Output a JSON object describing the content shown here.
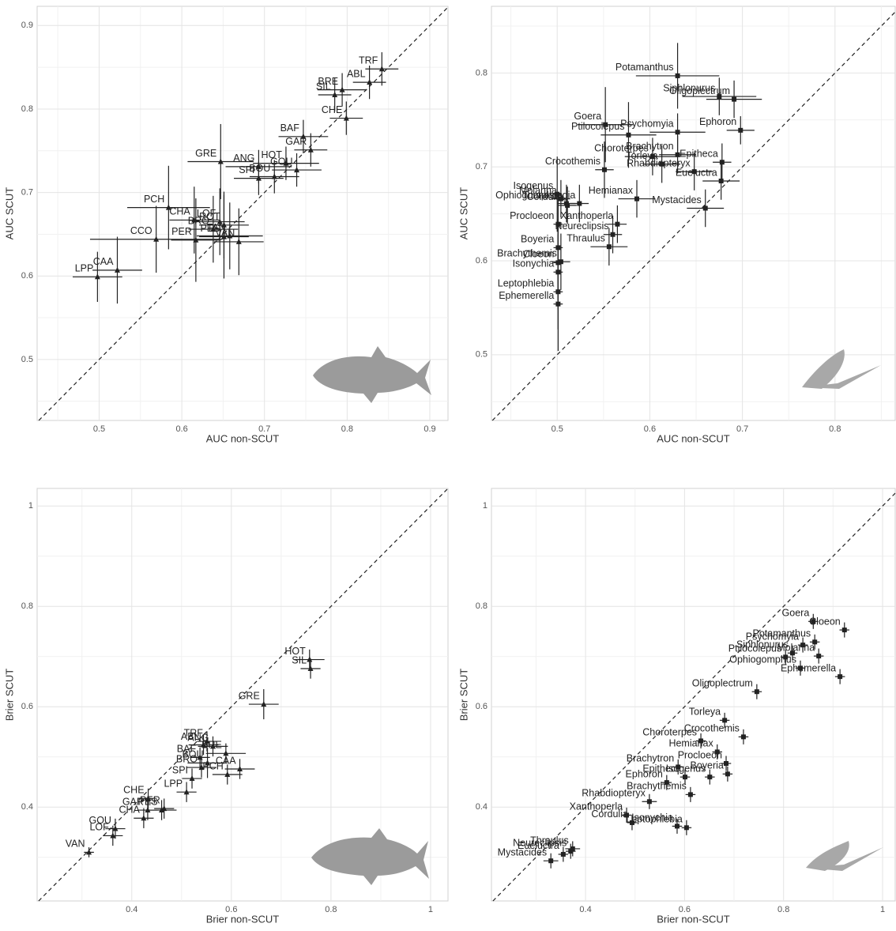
{
  "chart_data": [
    {
      "type": "scatter",
      "marker": "triangle",
      "color": "#222222",
      "grid": true,
      "identity_line": true,
      "x_label": "AUC non-SCUT",
      "y_label": "AUC SCUT",
      "xlim": [
        0.425,
        0.922
      ],
      "ylim": [
        0.427,
        0.923
      ],
      "xticks": [
        0.5,
        0.6,
        0.7,
        0.8,
        0.9
      ],
      "yticks": [
        0.5,
        0.6,
        0.7,
        0.8,
        0.9
      ],
      "labels": [
        "TRF",
        "ABL",
        "BRE",
        "SIL",
        "CHE",
        "BAF",
        "GAR",
        "HOT",
        "ANG",
        "GRE",
        "GOU",
        "BOU",
        "SPI",
        "PCH",
        "CHA",
        "LOF",
        "ROT",
        "BRO",
        "CCO",
        "TAN",
        "PER",
        "PES",
        "VAN",
        "CAA",
        "LPP"
      ],
      "x": [
        0.842,
        0.827,
        0.794,
        0.785,
        0.799,
        0.747,
        0.756,
        0.726,
        0.693,
        0.647,
        0.739,
        0.712,
        0.693,
        0.584,
        0.615,
        0.646,
        0.651,
        0.638,
        0.569,
        0.658,
        0.617,
        0.651,
        0.669,
        0.522,
        0.498
      ],
      "values": [
        0.848,
        0.832,
        0.823,
        0.817,
        0.789,
        0.767,
        0.751,
        0.735,
        0.731,
        0.737,
        0.727,
        0.719,
        0.717,
        0.682,
        0.667,
        0.665,
        0.661,
        0.656,
        0.644,
        0.648,
        0.643,
        0.647,
        0.641,
        0.607,
        0.599
      ],
      "x_err": [
        0.02,
        0.02,
        0.03,
        0.02,
        0.02,
        0.03,
        0.02,
        0.04,
        0.04,
        0.04,
        0.03,
        0.03,
        0.03,
        0.05,
        0.03,
        0.03,
        0.03,
        0.03,
        0.08,
        0.04,
        0.03,
        0.03,
        0.03,
        0.03,
        0.03
      ],
      "y_err": [
        0.02,
        0.02,
        0.02,
        0.02,
        0.02,
        0.02,
        0.02,
        0.02,
        0.02,
        0.045,
        0.02,
        0.02,
        0.02,
        0.05,
        0.04,
        0.04,
        0.04,
        0.04,
        0.04,
        0.04,
        0.05,
        0.05,
        0.04,
        0.04,
        0.03
      ]
    },
    {
      "type": "scatter",
      "marker": "square",
      "color": "#222222",
      "grid": true,
      "identity_line": true,
      "x_label": "AUC non-SCUT",
      "y_label": "AUC SCUT",
      "xlim": [
        0.429,
        0.865
      ],
      "ylim": [
        0.43,
        0.871
      ],
      "xticks": [
        0.5,
        0.6,
        0.7,
        0.8
      ],
      "yticks": [
        0.5,
        0.6,
        0.7,
        0.8
      ],
      "labels": [
        "Potamanthus",
        "Siphlonurus",
        "Oligoplectrum",
        "Goera",
        "Ptilocolepus",
        "Psychomyia",
        "Ephoron",
        "Brachytron",
        "Choroterpes",
        "Epitheca",
        "Torleya",
        "Crocothemis",
        "Rhabdiopteryx",
        "Eueluctra",
        "Isogenus",
        "Hemianax",
        "Molanna",
        "Trichostegia",
        "Mystacides",
        "Ophiogomphus",
        "Cordulia",
        "Xanthoperla",
        "Procloeon",
        "Boyeria",
        "Neureclipsis",
        "Thraulus",
        "Cloeon",
        "Brachythemis",
        "Isonychia",
        "Leptophlebia",
        "Ephemerella"
      ],
      "x": [
        0.63,
        0.675,
        0.691,
        0.552,
        0.577,
        0.63,
        0.698,
        0.63,
        0.603,
        0.678,
        0.613,
        0.551,
        0.648,
        0.677,
        0.5,
        0.586,
        0.504,
        0.524,
        0.66,
        0.51,
        0.511,
        0.565,
        0.501,
        0.501,
        0.56,
        0.556,
        0.501,
        0.504,
        0.501,
        0.501,
        0.501
      ],
      "values": [
        0.797,
        0.775,
        0.772,
        0.745,
        0.734,
        0.737,
        0.739,
        0.713,
        0.711,
        0.705,
        0.703,
        0.697,
        0.695,
        0.685,
        0.671,
        0.666,
        0.666,
        0.661,
        0.656,
        0.661,
        0.659,
        0.639,
        0.639,
        0.614,
        0.628,
        0.615,
        0.598,
        0.599,
        0.588,
        0.567,
        0.554
      ],
      "x_err": [
        0.045,
        0.04,
        0.03,
        0.03,
        0.03,
        0.03,
        0.015,
        0.02,
        0.03,
        0.01,
        0.02,
        0.01,
        0.02,
        0.02,
        0.005,
        0.02,
        0.01,
        0.01,
        0.02,
        0.01,
        0.01,
        0.01,
        0.005,
        0.005,
        0.01,
        0.02,
        0.005,
        0.01,
        0.005,
        0.005,
        0.005
      ],
      "y_err": [
        0.035,
        0.02,
        0.02,
        0.04,
        0.035,
        0.02,
        0.015,
        0.02,
        0.02,
        0.02,
        0.02,
        0.03,
        0.02,
        0.02,
        0.04,
        0.02,
        0.02,
        0.02,
        0.02,
        0.02,
        0.02,
        0.02,
        0.03,
        0.03,
        0.02,
        0.02,
        0.04,
        0.03,
        0.04,
        0.04,
        0.05
      ]
    },
    {
      "type": "scatter",
      "marker": "triangle",
      "color": "#222222",
      "grid": true,
      "identity_line": true,
      "x_label": "Brier non-SCUT",
      "y_label": "Brier SCUT",
      "xlim": [
        0.21,
        1.035
      ],
      "ylim": [
        0.213,
        1.035
      ],
      "xticks": [
        0.4,
        0.6,
        0.8,
        1.0
      ],
      "yticks": [
        0.4,
        0.6,
        0.8,
        1.0
      ],
      "labels": [
        "HOT",
        "SIL",
        "GRE",
        "TRF",
        "ABL",
        "ANG",
        "BRE",
        "BAF",
        "BOU",
        "BRO",
        "CAA",
        "PCH",
        "SPI",
        "LPP",
        "CHE",
        "PER",
        "GAR",
        "PES",
        "CHA",
        "GOU",
        "LOF",
        "VAN"
      ],
      "x": [
        0.757,
        0.759,
        0.665,
        0.551,
        0.544,
        0.563,
        0.589,
        0.537,
        0.552,
        0.54,
        0.617,
        0.592,
        0.521,
        0.51,
        0.433,
        0.465,
        0.432,
        0.46,
        0.424,
        0.367,
        0.362,
        0.314
      ],
      "values": [
        0.694,
        0.676,
        0.605,
        0.531,
        0.524,
        0.521,
        0.507,
        0.499,
        0.488,
        0.479,
        0.476,
        0.465,
        0.457,
        0.43,
        0.417,
        0.397,
        0.394,
        0.394,
        0.378,
        0.357,
        0.343,
        0.31
      ],
      "x_err": [
        0.03,
        0.02,
        0.03,
        0.02,
        0.03,
        0.03,
        0.04,
        0.02,
        0.04,
        0.03,
        0.03,
        0.03,
        0.02,
        0.02,
        0.01,
        0.02,
        0.02,
        0.03,
        0.02,
        0.02,
        0.02,
        0.01
      ],
      "y_err": [
        0.02,
        0.02,
        0.03,
        0.02,
        0.02,
        0.02,
        0.02,
        0.02,
        0.03,
        0.02,
        0.02,
        0.02,
        0.02,
        0.02,
        0.02,
        0.02,
        0.02,
        0.02,
        0.02,
        0.02,
        0.02,
        0.01
      ]
    },
    {
      "type": "scatter",
      "marker": "square",
      "color": "#222222",
      "grid": true,
      "identity_line": true,
      "x_label": "Brier non-SCUT",
      "y_label": "Brier SCUT",
      "xlim": [
        0.21,
        1.0255
      ],
      "ylim": [
        0.213,
        1.035
      ],
      "xticks": [
        0.4,
        0.6,
        0.8,
        1.0
      ],
      "yticks": [
        0.4,
        0.6,
        0.8,
        1.0
      ],
      "labels": [
        "Goera",
        "Cloeon",
        "Siphlonurus",
        "Potamanthus",
        "Psychomyia",
        "Ptilocolepus",
        "Molanna",
        "Ophiogomphus",
        "Ephemerella",
        "Oligoplectrum",
        "Torleya",
        "Crocothemis",
        "Choroterpes",
        "Hemianax",
        "Procloeon",
        "Boyeria",
        "Brachytron",
        "Epitheca",
        "Ephoron",
        "Isogenus",
        "Brachythemis",
        "Rhabdiopteryx",
        "Xanthoperla",
        "Cordulia",
        "Isonychia",
        "Leptophlebia",
        "Thraulus",
        "Neureclipsis",
        "Eueluctra",
        "Mystacides"
      ],
      "x": [
        0.86,
        0.923,
        0.818,
        0.863,
        0.839,
        0.804,
        0.871,
        0.834,
        0.914,
        0.746,
        0.681,
        0.719,
        0.633,
        0.666,
        0.684,
        0.687,
        0.587,
        0.601,
        0.564,
        0.651,
        0.612,
        0.529,
        0.483,
        0.494,
        0.585,
        0.604,
        0.374,
        0.37,
        0.355,
        0.33
      ],
      "values": [
        0.77,
        0.753,
        0.707,
        0.729,
        0.723,
        0.699,
        0.701,
        0.677,
        0.66,
        0.63,
        0.573,
        0.54,
        0.532,
        0.51,
        0.487,
        0.466,
        0.48,
        0.46,
        0.449,
        0.46,
        0.425,
        0.411,
        0.384,
        0.369,
        0.362,
        0.359,
        0.317,
        0.312,
        0.306,
        0.293
      ],
      "x_err": [
        0.01,
        0.01,
        0.01,
        0.01,
        0.01,
        0.01,
        0.01,
        0.01,
        0.01,
        0.01,
        0.01,
        0.01,
        0.01,
        0.01,
        0.01,
        0.01,
        0.01,
        0.01,
        0.01,
        0.01,
        0.01,
        0.015,
        0.01,
        0.01,
        0.01,
        0.01,
        0.015,
        0.01,
        0.01,
        0.015
      ],
      "y_err": [
        0.015,
        0.015,
        0.015,
        0.015,
        0.015,
        0.015,
        0.015,
        0.015,
        0.015,
        0.015,
        0.015,
        0.015,
        0.015,
        0.015,
        0.015,
        0.015,
        0.015,
        0.015,
        0.015,
        0.015,
        0.015,
        0.015,
        0.015,
        0.015,
        0.015,
        0.015,
        0.015,
        0.015,
        0.015,
        0.015
      ]
    }
  ]
}
